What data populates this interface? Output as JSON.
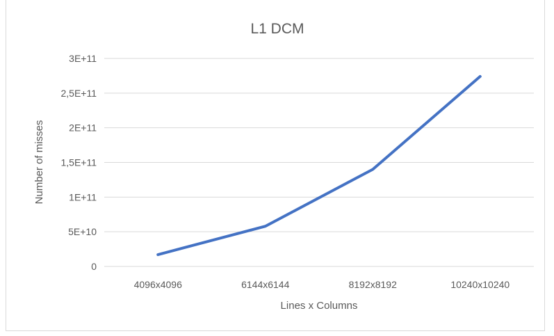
{
  "chart_data": {
    "type": "line",
    "title": "L1 DCM",
    "xlabel": "Lines x Columns",
    "ylabel": "Number of misses",
    "categories": [
      "4096x4096",
      "6144x6144",
      "8192x8192",
      "10240x10240"
    ],
    "series": [
      {
        "values": [
          17000000000,
          58000000000,
          140000000000,
          274000000000
        ],
        "color": "#4472c4"
      }
    ],
    "ylim": [
      0,
      300000000000
    ],
    "y_ticks": [
      0,
      50000000000,
      100000000000,
      150000000000,
      200000000000,
      250000000000,
      300000000000
    ],
    "y_tick_labels": [
      "0",
      "5E+10",
      "1E+11",
      "1,5E+11",
      "2E+11",
      "2,5E+11",
      "3E+11"
    ],
    "grid": true,
    "legend": "none",
    "colors": {
      "gridline": "#d9d9d9",
      "text": "#595959",
      "series": "#4472c4"
    }
  }
}
